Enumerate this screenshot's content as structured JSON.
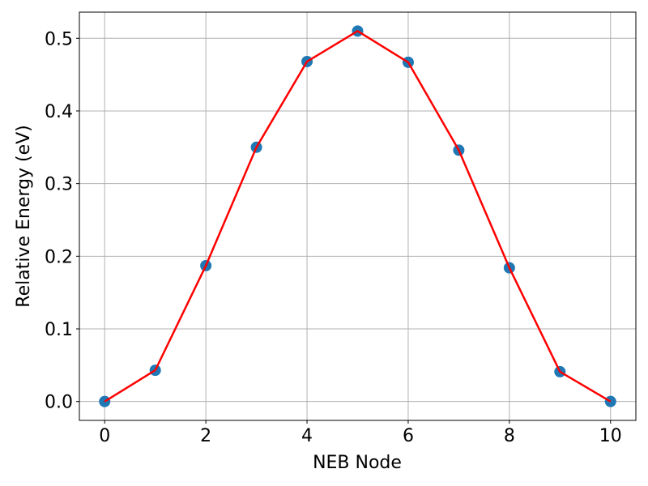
{
  "chart_data": {
    "type": "line",
    "title": "",
    "xlabel": "NEB Node",
    "ylabel": "Relative Energy (eV)",
    "xlim": [
      -0.5,
      10.5
    ],
    "ylim": [
      -0.026,
      0.536
    ],
    "xticks": [
      0,
      2,
      4,
      6,
      8,
      10
    ],
    "xtick_labels": [
      "0",
      "2",
      "4",
      "6",
      "8",
      "10"
    ],
    "yticks": [
      0.0,
      0.1,
      0.2,
      0.3,
      0.4,
      0.5
    ],
    "ytick_labels": [
      "0.0",
      "0.1",
      "0.2",
      "0.3",
      "0.4",
      "0.5"
    ],
    "grid": true,
    "x": [
      0,
      1,
      2,
      3,
      4,
      5,
      6,
      7,
      8,
      9,
      10
    ],
    "series": [
      {
        "values": [
          0.0,
          0.043,
          0.187,
          0.35,
          0.468,
          0.51,
          0.467,
          0.346,
          0.184,
          0.041,
          0.0
        ],
        "line_color": "#ff0000",
        "marker_color": "#1f77b4"
      }
    ]
  }
}
